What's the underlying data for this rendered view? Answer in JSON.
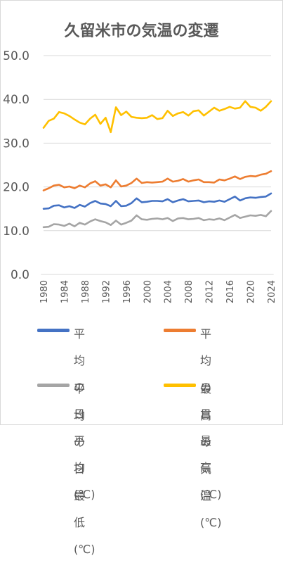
{
  "chart_data": {
    "type": "line",
    "title": "久留米市の気温の変遷",
    "ylim": [
      0,
      50
    ],
    "yticks": [
      "0.0",
      "10.0",
      "20.0",
      "30.0",
      "40.0",
      "50.0"
    ],
    "xtick_labels": [
      "1980",
      "1984",
      "1988",
      "1992",
      "1996",
      "2000",
      "2004",
      "2008",
      "2012",
      "2016",
      "2020",
      "2024"
    ],
    "grid": true,
    "legend_position": "bottom",
    "x": [
      1980,
      1981,
      1982,
      1983,
      1984,
      1985,
      1986,
      1987,
      1988,
      1989,
      1990,
      1991,
      1992,
      1993,
      1994,
      1995,
      1996,
      1997,
      1998,
      1999,
      2000,
      2001,
      2002,
      2003,
      2004,
      2005,
      2006,
      2007,
      2008,
      2009,
      2010,
      2011,
      2012,
      2013,
      2014,
      2015,
      2016,
      2017,
      2018,
      2019,
      2020,
      2021,
      2022,
      2023,
      2024
    ],
    "series": [
      {
        "name": "平均の\n日平均(℃)",
        "color": "#4472c4",
        "values": [
          15.0,
          15.1,
          15.7,
          15.8,
          15.3,
          15.6,
          15.2,
          15.9,
          15.5,
          16.3,
          16.8,
          16.2,
          16.1,
          15.6,
          16.8,
          15.6,
          15.7,
          16.3,
          17.4,
          16.5,
          16.6,
          16.8,
          16.8,
          16.7,
          17.2,
          16.5,
          16.9,
          17.2,
          16.7,
          16.8,
          16.9,
          16.5,
          16.7,
          16.6,
          16.9,
          16.6,
          17.2,
          17.8,
          16.9,
          17.4,
          17.6,
          17.5,
          17.7,
          17.8,
          18.5
        ]
      },
      {
        "name": "平均の\n日最高(℃)",
        "color": "#ed7d31",
        "values": [
          19.2,
          19.7,
          20.3,
          20.5,
          19.9,
          20.1,
          19.7,
          20.3,
          19.9,
          20.8,
          21.3,
          20.3,
          20.6,
          19.9,
          21.5,
          20.1,
          20.3,
          20.9,
          21.9,
          20.9,
          21.1,
          21.0,
          21.1,
          21.2,
          21.9,
          21.2,
          21.4,
          21.8,
          21.2,
          21.5,
          21.7,
          21.1,
          21.1,
          21.0,
          21.7,
          21.5,
          21.9,
          22.4,
          21.8,
          22.3,
          22.5,
          22.4,
          22.8,
          23.0,
          23.6
        ]
      },
      {
        "name": "平均の\n日最低(℃)",
        "color": "#a5a5a5",
        "values": [
          10.8,
          10.9,
          11.5,
          11.4,
          11.1,
          11.6,
          11.0,
          11.8,
          11.4,
          12.1,
          12.6,
          12.2,
          11.9,
          11.3,
          12.3,
          11.4,
          11.8,
          12.3,
          13.5,
          12.6,
          12.5,
          12.7,
          12.8,
          12.6,
          12.9,
          12.2,
          12.8,
          12.9,
          12.6,
          12.7,
          12.9,
          12.4,
          12.6,
          12.5,
          12.8,
          12.4,
          13.0,
          13.6,
          12.9,
          13.2,
          13.5,
          13.4,
          13.6,
          13.3,
          14.5
        ]
      },
      {
        "name": "最高の\n気温 (℃)",
        "color": "#ffc000",
        "values": [
          33.5,
          35.1,
          35.6,
          37.1,
          36.8,
          36.2,
          35.4,
          34.7,
          34.3,
          35.6,
          36.5,
          34.4,
          35.8,
          32.5,
          38.2,
          36.4,
          37.2,
          36.0,
          35.8,
          35.7,
          35.8,
          36.4,
          35.5,
          35.7,
          37.4,
          36.2,
          36.8,
          37.1,
          36.3,
          37.3,
          37.5,
          36.3,
          37.2,
          38.1,
          37.4,
          37.8,
          38.3,
          37.9,
          38.1,
          39.6,
          38.3,
          38.1,
          37.4,
          38.3,
          39.6
        ]
      }
    ]
  }
}
